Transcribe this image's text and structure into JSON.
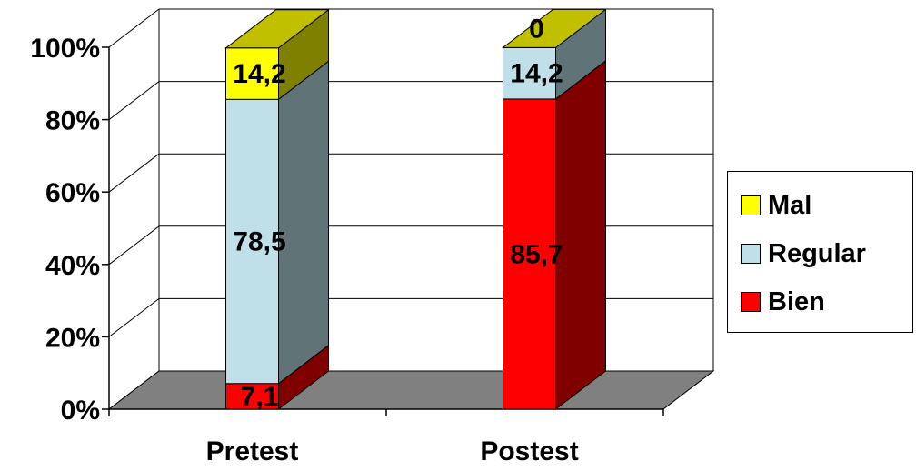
{
  "chart_data": {
    "type": "bar",
    "stacked": true,
    "three_d": true,
    "percent_stacked": true,
    "categories": [
      "Pretest",
      "Postest"
    ],
    "series": [
      {
        "name": "Bien",
        "values": [
          7.1,
          85.7
        ],
        "labels": [
          "7,1",
          "85,7"
        ],
        "color": "#ff0000",
        "side_color": "#800000",
        "top_color": "#800000"
      },
      {
        "name": "Regular",
        "values": [
          78.5,
          14.2
        ],
        "labels": [
          "78,5",
          "14,2"
        ],
        "color": "#bfe0e8",
        "side_color": "#607478",
        "top_color": "#607478"
      },
      {
        "name": "Mal",
        "values": [
          14.2,
          0
        ],
        "labels": [
          "14,2",
          "0"
        ],
        "color": "#ffff00",
        "side_color": "#808000",
        "top_color": "#c0c000"
      }
    ],
    "y_ticks": [
      "0%",
      "20%",
      "40%",
      "60%",
      "80%",
      "100%"
    ],
    "ylim": [
      0,
      100
    ],
    "grid": true,
    "legend_position": "right",
    "legend_order": [
      "Mal",
      "Regular",
      "Bien"
    ],
    "floor_color": "#808080"
  }
}
